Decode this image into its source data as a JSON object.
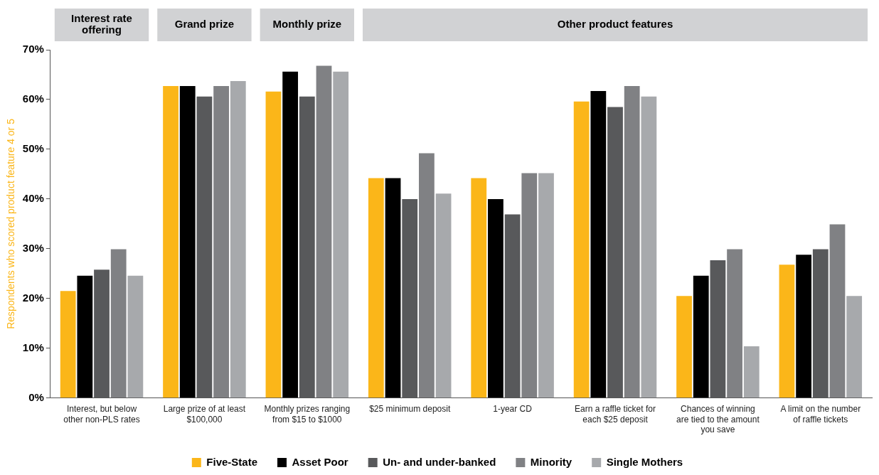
{
  "chart_data": {
    "type": "bar",
    "ylabel": "Respondents who scored product feature 4 or 5",
    "categories": [
      "Interest, but below other non-PLS rates",
      "Large prize of at least $100,000",
      "Monthly prizes ranging from $15 to $1000",
      "$25 minimum deposit",
      "1-year CD",
      "Earn a raffle ticket for each $25 deposit",
      "Chances of winning are tied to the amount you save",
      "A limit on the number of raffle tickets"
    ],
    "series": [
      {
        "name": "Five-State",
        "color": "#fbb619",
        "values": [
          21.5,
          62.7,
          61.6,
          44.2,
          44.2,
          59.6,
          20.5,
          26.8
        ]
      },
      {
        "name": "Asset Poor",
        "color": "#000000",
        "values": [
          24.6,
          62.7,
          65.6,
          44.2,
          40,
          61.7,
          24.6,
          28.8
        ]
      },
      {
        "name": "Un- and under-banked",
        "color": "#58595b",
        "values": [
          25.8,
          60.6,
          60.6,
          40,
          36.9,
          58.5,
          27.7,
          29.9
        ]
      },
      {
        "name": "Minority",
        "color": "#808184",
        "values": [
          29.9,
          62.7,
          66.8,
          49.2,
          45.2,
          62.7,
          29.9,
          34.9
        ]
      },
      {
        "name": "Single Mothers",
        "color": "#a7a9ac",
        "values": [
          24.6,
          63.7,
          65.6,
          41.1,
          45.2,
          60.6,
          10.4,
          20.5
        ]
      }
    ],
    "ylim": [
      0,
      70
    ],
    "yticks": [
      {
        "value": 0,
        "label": "0%"
      },
      {
        "value": 10,
        "label": "10%"
      },
      {
        "value": 20,
        "label": "20%"
      },
      {
        "value": 30,
        "label": "30%"
      },
      {
        "value": 40,
        "label": "40%"
      },
      {
        "value": 50,
        "label": "50%"
      },
      {
        "value": 60,
        "label": "60%"
      },
      {
        "value": 70,
        "label": "70%"
      }
    ],
    "annotations": [
      "Interest rate offering",
      "Grand prize",
      "Monthly prize",
      "Other product features"
    ],
    "grid": false,
    "legend": "bottom"
  }
}
